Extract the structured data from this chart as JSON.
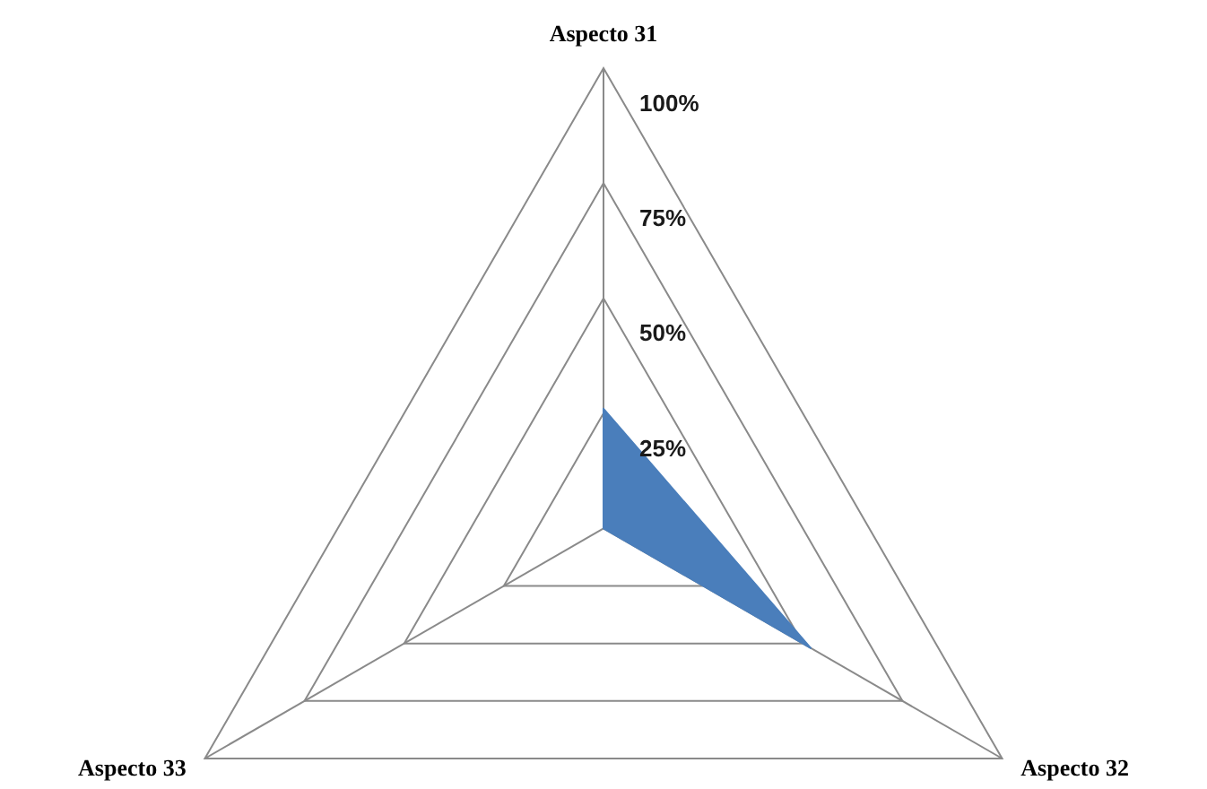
{
  "chart_data": {
    "type": "radar",
    "categories": [
      "Aspecto 31",
      "Aspecto 32",
      "Aspecto 33"
    ],
    "series": [
      {
        "color": "#4a7ebb",
        "values": [
          26,
          52,
          0
        ]
      }
    ],
    "ylim": [
      0,
      100
    ],
    "yticks": [
      {
        "value": 25,
        "label": "25%"
      },
      {
        "value": 50,
        "label": "50%"
      },
      {
        "value": 75,
        "label": "75%"
      },
      {
        "value": 100,
        "label": "100%"
      }
    ],
    "grid": true,
    "marker": "none"
  }
}
